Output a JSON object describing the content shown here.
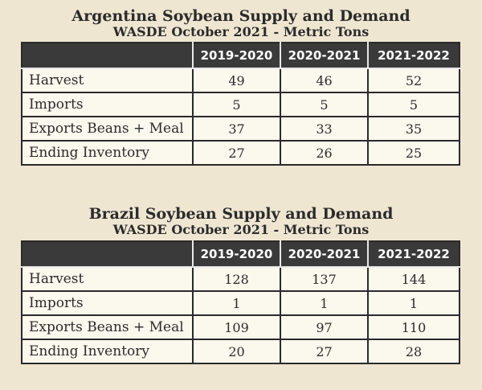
{
  "argentina": {
    "title": "Argentina Soybean Supply and Demand",
    "subtitle": "WASDE October 2021 - Metric Tons",
    "columns": [
      "",
      "2019-2020",
      "2020-2021",
      "2021-2022"
    ],
    "rows": [
      {
        "label": "Harvest",
        "values": [
          "49",
          "46",
          "52"
        ]
      },
      {
        "label": "Imports",
        "values": [
          "5",
          "5",
          "5"
        ]
      },
      {
        "label": "Exports Beans + Meal",
        "values": [
          "37",
          "33",
          "35"
        ]
      },
      {
        "label": "Ending Inventory",
        "values": [
          "27",
          "26",
          "25"
        ]
      }
    ]
  },
  "brazil": {
    "title": "Brazil Soybean Supply and Demand",
    "subtitle": "WASDE October 2021 - Metric Tons",
    "columns": [
      "",
      "2019-2020",
      "2020-2021",
      "2021-2022"
    ],
    "rows": [
      {
        "label": "Harvest",
        "values": [
          "128",
          "137",
          "144"
        ]
      },
      {
        "label": "Imports",
        "values": [
          "1",
          "1",
          "1"
        ]
      },
      {
        "label": "Exports Beans + Meal",
        "values": [
          "109",
          "97",
          "110"
        ]
      },
      {
        "label": "Ending Inventory",
        "values": [
          "20",
          "27",
          "28"
        ]
      }
    ]
  },
  "chart_data": [
    {
      "type": "table",
      "title": "Argentina Soybean Supply and Demand",
      "subtitle": "WASDE October 2021 - Metric Tons",
      "categories": [
        "Harvest",
        "Imports",
        "Exports Beans + Meal",
        "Ending Inventory"
      ],
      "series": [
        {
          "name": "2019-2020",
          "values": [
            49,
            5,
            37,
            27
          ]
        },
        {
          "name": "2020-2021",
          "values": [
            46,
            5,
            33,
            26
          ]
        },
        {
          "name": "2021-2022",
          "values": [
            52,
            5,
            35,
            25
          ]
        }
      ]
    },
    {
      "type": "table",
      "title": "Brazil Soybean Supply and Demand",
      "subtitle": "WASDE October 2021 - Metric Tons",
      "categories": [
        "Harvest",
        "Imports",
        "Exports Beans + Meal",
        "Ending Inventory"
      ],
      "series": [
        {
          "name": "2019-2020",
          "values": [
            128,
            1,
            109,
            20
          ]
        },
        {
          "name": "2020-2021",
          "values": [
            137,
            1,
            97,
            27
          ]
        },
        {
          "name": "2021-2022",
          "values": [
            144,
            1,
            110,
            28
          ]
        }
      ]
    }
  ]
}
